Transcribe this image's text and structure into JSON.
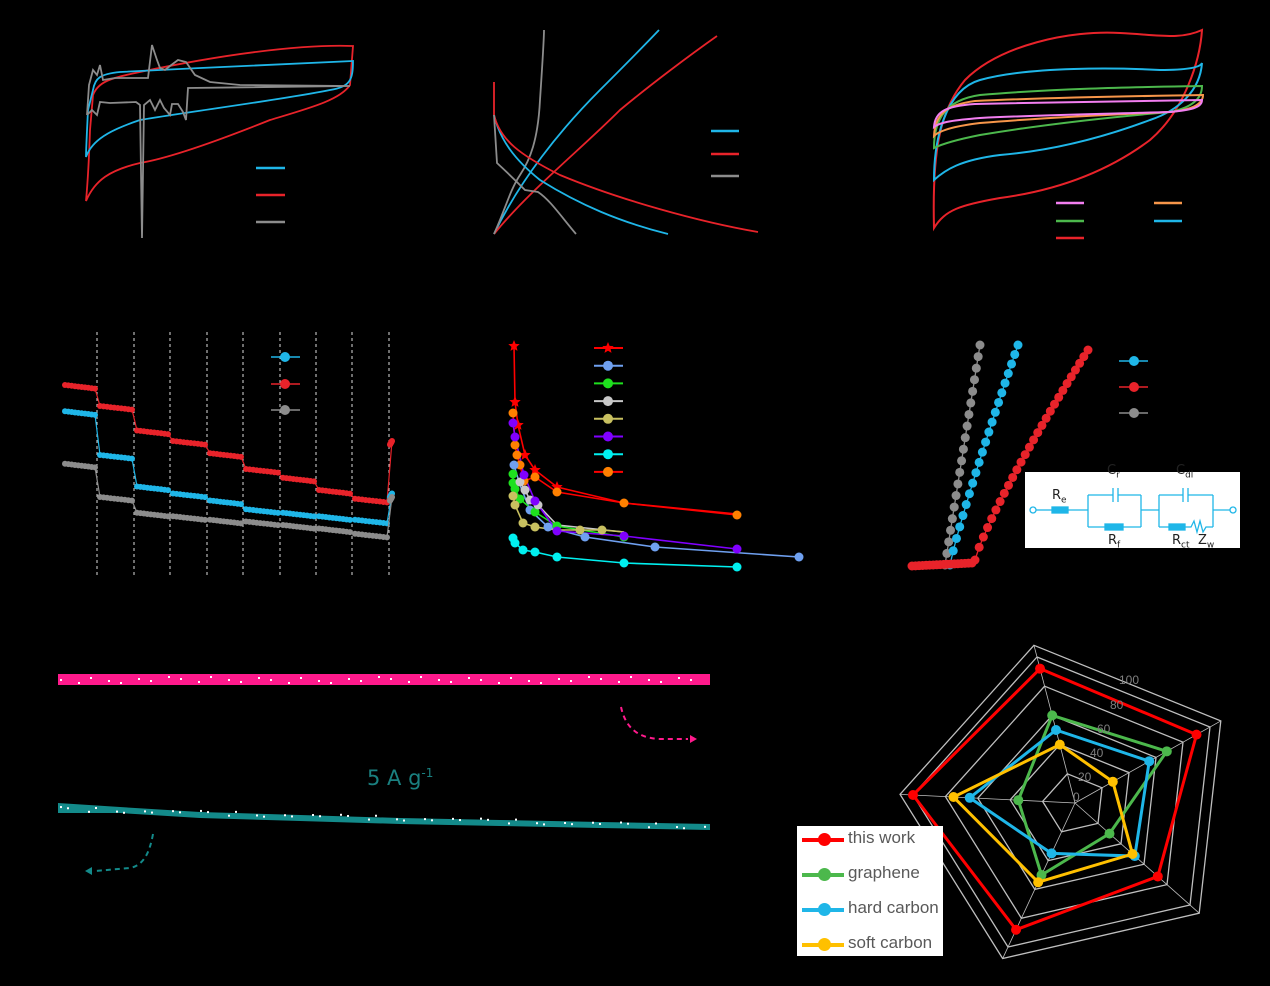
{
  "figure": {
    "background": "#000000",
    "panel_count": 8,
    "note": "Axis labels, tick labels and panel letters are rendered black on black and are not visible."
  },
  "colors": {
    "blue": "#1fb6e8",
    "red": "#e8232a",
    "gray": "#8c8c8c",
    "pink": "#ff1a8c",
    "teal": "#138a8a",
    "magenta": "#f27ef0",
    "orange": "#f7964a",
    "green": "#4cb84c"
  },
  "cycling": {
    "rate_value": "5 A g",
    "rate_exponent": "-1"
  },
  "circuit": {
    "labels": {
      "re": "R",
      "re_sub": "e",
      "cr": "C",
      "cr_sub": "r",
      "rf": "R",
      "rf_sub": "f",
      "cdl": "C",
      "cdl_sub": "dl",
      "rct": "R",
      "rct_sub": "ct",
      "zw": "Z",
      "zw_sub": "w"
    }
  },
  "radar": {
    "ticks": [
      "0",
      "20",
      "40",
      "60",
      "80",
      "100"
    ],
    "legend": [
      {
        "label": "this work",
        "color": "#ff0000"
      },
      {
        "label": "graphene",
        "color": "#4cb84c"
      },
      {
        "label": "hard carbon",
        "color": "#1fb6e8"
      },
      {
        "label": "soft carbon",
        "color": "#ffc000"
      }
    ]
  },
  "chart_data": [
    {
      "panel": "top-left",
      "type": "line",
      "title": "",
      "xlabel": "",
      "ylabel": "",
      "series": [
        {
          "name": "series 1 (blue, legend text hidden)",
          "color": "#1fb6e8",
          "shape": "closed loop (CV-like), rectangular with sloped edges"
        },
        {
          "name": "series 2 (red, legend text hidden)",
          "color": "#e8232a",
          "shape": "closed loop, widest envelope, sharp cathodic tail at left"
        },
        {
          "name": "series 3 (gray, legend text hidden)",
          "color": "#8c8c8c",
          "shape": "loop with redox peaks near left third, deep spike down"
        }
      ],
      "grid": false,
      "legend_position": "lower-right"
    },
    {
      "panel": "top-middle",
      "type": "line",
      "series": [
        {
          "name": "blue (legend text hidden)",
          "color": "#1fb6e8",
          "shape": "one rising curve + one decaying curve"
        },
        {
          "name": "red (legend text hidden)",
          "color": "#e8232a",
          "shape": "one rising curve + one decaying curve, longest"
        },
        {
          "name": "gray (legend text hidden)",
          "color": "#8c8c8c",
          "shape": "short rising curve going vertical + short decaying curve"
        }
      ],
      "grid": false,
      "legend_position": "right"
    },
    {
      "panel": "top-right",
      "type": "line",
      "series": [
        {
          "name": "magenta (smallest loop)",
          "color": "#f27ef0"
        },
        {
          "name": "orange",
          "color": "#f7964a"
        },
        {
          "name": "green",
          "color": "#4cb84c"
        },
        {
          "name": "blue",
          "color": "#1fb6e8"
        },
        {
          "name": "red (largest loop)",
          "color": "#e8232a"
        }
      ],
      "shape": "nested CV loops, area increases with scan rate",
      "grid": false,
      "legend_position": "lower-right (2 columns)"
    },
    {
      "panel": "middle-left",
      "type": "scatter",
      "description": "Rate capability: stepwise decreasing capacity across 9 segments then recovery in last segment; vertical dashed dividers",
      "segments": 10,
      "series": [
        {
          "name": "red",
          "color": "#e8232a",
          "relative_levels": [
            100,
            88,
            74,
            68,
            61,
            52,
            47,
            40,
            35,
            68
          ]
        },
        {
          "name": "blue",
          "color": "#1fb6e8",
          "relative_levels": [
            85,
            60,
            42,
            38,
            34,
            29,
            27,
            25,
            23,
            38
          ]
        },
        {
          "name": "gray",
          "color": "#8c8c8c",
          "relative_levels": [
            55,
            36,
            27,
            25,
            23,
            22,
            20,
            18,
            15,
            36
          ]
        }
      ],
      "grid": "vertical dashed lines",
      "legend_position": "upper-right"
    },
    {
      "panel": "middle-center",
      "type": "line",
      "description": "Ragone-type comparison, 8 series with markers",
      "series": [
        {
          "name": "series 1 (star, this work)",
          "color": "#ff0000",
          "marker": "star"
        },
        {
          "name": "series 2",
          "color": "#6fa0f0",
          "marker": "circle"
        },
        {
          "name": "series 3",
          "color": "#1ee01e",
          "marker": "circle"
        },
        {
          "name": "series 4",
          "color": "#c8c8c8",
          "marker": "circle"
        },
        {
          "name": "series 5",
          "color": "#c8c060",
          "marker": "circle"
        },
        {
          "name": "series 6",
          "color": "#8000ff",
          "marker": "circle"
        },
        {
          "name": "series 7",
          "color": "#00f0f0",
          "marker": "circle"
        },
        {
          "name": "series 8",
          "color": "#ff8000",
          "line_color": "#ff0000",
          "marker": "circle"
        }
      ],
      "legend_position": "upper-middle"
    },
    {
      "panel": "middle-right",
      "type": "scatter",
      "description": "Nyquist plots with equivalent circuit inset",
      "series": [
        {
          "name": "blue",
          "color": "#1fb6e8"
        },
        {
          "name": "red",
          "color": "#e8232a"
        },
        {
          "name": "gray",
          "color": "#8c8c8c"
        }
      ],
      "legend_position": "upper-right"
    },
    {
      "panel": "bottom-left",
      "type": "scatter",
      "description": "Long-term cycling at 5 A g-1; two flat series with dashed arrows pointing to respective axes",
      "series": [
        {
          "name": "pink (upper trace, arrow to right axis)",
          "color": "#ff1a8c",
          "trend": "flat"
        },
        {
          "name": "teal (lower trace, arrow to left axis)",
          "color": "#138a8a",
          "trend": "slight decline"
        }
      ],
      "annotation": "5 A g-1"
    },
    {
      "panel": "bottom-right",
      "type": "radar",
      "axes_count": 5,
      "rlim": [
        0,
        100
      ],
      "ticks": [
        0,
        20,
        40,
        60,
        80,
        100
      ],
      "series": [
        {
          "name": "this work",
          "color": "#ff0000",
          "values": [
            92,
            90,
            72,
            88,
            100
          ]
        },
        {
          "name": "graphene",
          "color": "#4cb84c",
          "values": [
            60,
            68,
            30,
            50,
            35
          ]
        },
        {
          "name": "hard carbon",
          "color": "#1fb6e8",
          "values": [
            50,
            55,
            52,
            35,
            65
          ]
        },
        {
          "name": "soft carbon",
          "color": "#ffc000",
          "values": [
            40,
            28,
            50,
            55,
            75
          ]
        }
      ],
      "legend_position": "lower-left"
    }
  ]
}
